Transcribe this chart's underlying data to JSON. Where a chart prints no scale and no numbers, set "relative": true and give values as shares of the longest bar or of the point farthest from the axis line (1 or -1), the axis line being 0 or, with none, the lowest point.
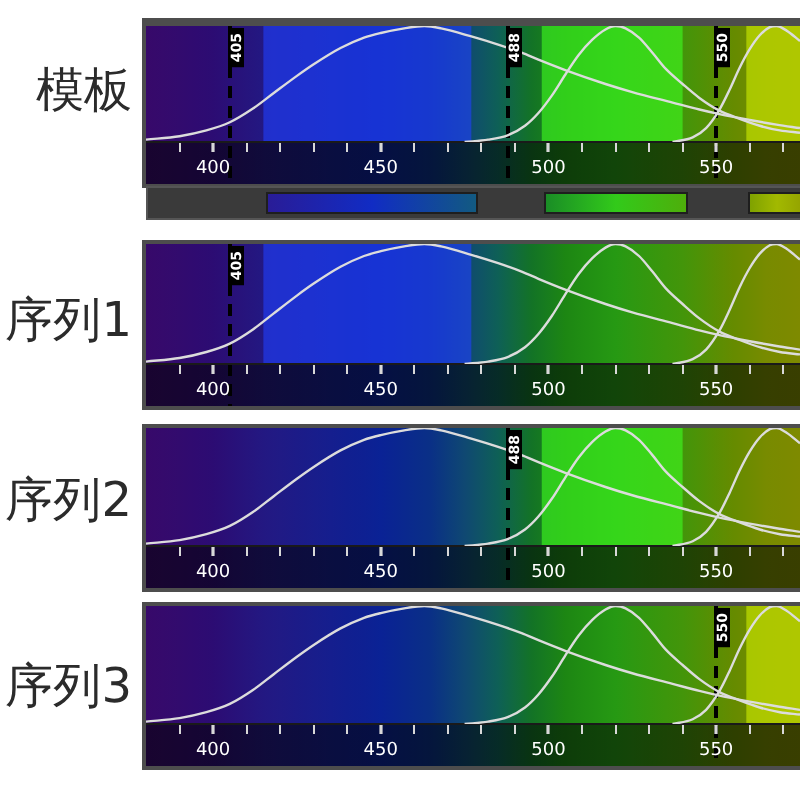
{
  "chart_data": [
    {
      "type": "line",
      "title": "模板",
      "relative": true,
      "xlim": [
        380,
        575
      ],
      "xticks": [
        {
          "value": 390,
          "label": null
        },
        400,
        {
          "value": 410,
          "label": null
        },
        {
          "value": 420,
          "label": null
        },
        {
          "value": 430,
          "label": null
        },
        {
          "value": 440,
          "label": null
        },
        450,
        {
          "value": 460,
          "label": null
        },
        {
          "value": 470,
          "label": null
        },
        {
          "value": 480,
          "label": null
        },
        {
          "value": 490,
          "label": null
        },
        500,
        {
          "value": 510,
          "label": null
        },
        {
          "value": 520,
          "label": null
        },
        {
          "value": 530,
          "label": null
        },
        {
          "value": 540,
          "label": null
        },
        550,
        {
          "value": 560,
          "label": null
        },
        {
          "value": 570,
          "label": null
        }
      ],
      "series": [
        {
          "color": "#dcdcdc",
          "x": [
            380,
            390,
            398,
            405,
            412,
            418,
            425,
            430,
            438,
            445,
            450,
            457,
            463,
            468,
            477,
            485,
            492,
            497,
            505,
            517,
            525,
            537,
            545,
            551,
            560,
            568,
            575
          ],
          "values": [
            0.02,
            0.05,
            0.1,
            0.17,
            0.29,
            0.42,
            0.57,
            0.67,
            0.81,
            0.9,
            0.94,
            0.98,
            1.0,
            0.98,
            0.91,
            0.84,
            0.77,
            0.71,
            0.62,
            0.5,
            0.43,
            0.34,
            0.28,
            0.24,
            0.19,
            0.15,
            0.12
          ]
        },
        {
          "color": "#dcdcdc",
          "x": [
            475,
            482,
            488,
            493,
            497,
            501,
            505,
            509,
            513,
            517,
            520,
            523,
            527,
            531,
            535,
            540,
            545,
            551,
            557,
            563,
            569,
            575
          ],
          "values": [
            0,
            0.02,
            0.06,
            0.14,
            0.25,
            0.4,
            0.58,
            0.75,
            0.88,
            0.97,
            1.0,
            0.98,
            0.9,
            0.77,
            0.63,
            0.5,
            0.38,
            0.27,
            0.2,
            0.14,
            0.1,
            0.08
          ]
        },
        {
          "color": "#dcdcdc",
          "x": [
            537,
            543,
            547,
            551,
            554,
            557,
            560,
            563,
            566,
            568,
            571,
            575
          ],
          "values": [
            0,
            0.04,
            0.12,
            0.28,
            0.45,
            0.64,
            0.8,
            0.92,
            0.99,
            1.0,
            0.96,
            0.87
          ]
        }
      ],
      "ref_lines": [
        {
          "axis": "x",
          "value": 405,
          "label": "405",
          "color": "#000000",
          "line_style": "dashed"
        },
        {
          "axis": "x",
          "value": 488,
          "label": "488",
          "color": "#000000",
          "line_style": "dashed"
        },
        {
          "axis": "x",
          "value": 550,
          "label": "550",
          "color": "#000000",
          "line_style": "dashed"
        }
      ],
      "bands": [
        {
          "axis": "x",
          "from": 415,
          "to": 477,
          "color": "#2040ff"
        },
        {
          "axis": "x",
          "from": 498,
          "to": 540,
          "color": "#40ff20"
        },
        {
          "axis": "x",
          "from": 559,
          "to": 575,
          "color": "#d0f000"
        }
      ]
    },
    {
      "type": "line",
      "title": "序列1",
      "relative": true,
      "xlim": [
        380,
        575
      ],
      "xticks": [
        {
          "value": 390,
          "label": null
        },
        400,
        {
          "value": 410,
          "label": null
        },
        {
          "value": 420,
          "label": null
        },
        {
          "value": 430,
          "label": null
        },
        {
          "value": 440,
          "label": null
        },
        450,
        {
          "value": 460,
          "label": null
        },
        {
          "value": 470,
          "label": null
        },
        {
          "value": 480,
          "label": null
        },
        {
          "value": 490,
          "label": null
        },
        500,
        {
          "value": 510,
          "label": null
        },
        {
          "value": 520,
          "label": null
        },
        {
          "value": 530,
          "label": null
        },
        {
          "value": 540,
          "label": null
        },
        550,
        {
          "value": 560,
          "label": null
        },
        {
          "value": 570,
          "label": null
        }
      ],
      "series": [
        {
          "color": "#dcdcdc",
          "x": [
            380,
            390,
            398,
            405,
            412,
            418,
            425,
            430,
            438,
            445,
            450,
            457,
            463,
            468,
            477,
            485,
            492,
            497,
            505,
            517,
            525,
            537,
            545,
            551,
            560,
            568,
            575
          ],
          "values": [
            0.02,
            0.05,
            0.1,
            0.17,
            0.29,
            0.42,
            0.57,
            0.67,
            0.81,
            0.9,
            0.94,
            0.98,
            1.0,
            0.98,
            0.91,
            0.84,
            0.77,
            0.71,
            0.62,
            0.5,
            0.43,
            0.34,
            0.28,
            0.24,
            0.19,
            0.15,
            0.12
          ]
        },
        {
          "color": "#dcdcdc",
          "x": [
            475,
            482,
            488,
            493,
            497,
            501,
            505,
            509,
            513,
            517,
            520,
            523,
            527,
            531,
            535,
            540,
            545,
            551,
            557,
            563,
            569,
            575
          ],
          "values": [
            0,
            0.02,
            0.06,
            0.14,
            0.25,
            0.4,
            0.58,
            0.75,
            0.88,
            0.97,
            1.0,
            0.98,
            0.9,
            0.77,
            0.63,
            0.5,
            0.38,
            0.27,
            0.2,
            0.14,
            0.1,
            0.08
          ]
        },
        {
          "color": "#dcdcdc",
          "x": [
            537,
            543,
            547,
            551,
            554,
            557,
            560,
            563,
            566,
            568,
            571,
            575
          ],
          "values": [
            0,
            0.04,
            0.12,
            0.28,
            0.45,
            0.64,
            0.8,
            0.92,
            0.99,
            1.0,
            0.96,
            0.87
          ]
        }
      ],
      "ref_lines": [
        {
          "axis": "x",
          "value": 405,
          "label": "405",
          "color": "#000000",
          "line_style": "dashed"
        }
      ],
      "bands": [
        {
          "axis": "x",
          "from": 415,
          "to": 477,
          "color": "#2040ff"
        }
      ]
    },
    {
      "type": "line",
      "title": "序列2",
      "relative": true,
      "xlim": [
        380,
        575
      ],
      "xticks": [
        {
          "value": 390,
          "label": null
        },
        400,
        {
          "value": 410,
          "label": null
        },
        {
          "value": 420,
          "label": null
        },
        {
          "value": 430,
          "label": null
        },
        {
          "value": 440,
          "label": null
        },
        450,
        {
          "value": 460,
          "label": null
        },
        {
          "value": 470,
          "label": null
        },
        {
          "value": 480,
          "label": null
        },
        {
          "value": 490,
          "label": null
        },
        500,
        {
          "value": 510,
          "label": null
        },
        {
          "value": 520,
          "label": null
        },
        {
          "value": 530,
          "label": null
        },
        {
          "value": 540,
          "label": null
        },
        550,
        {
          "value": 560,
          "label": null
        },
        {
          "value": 570,
          "label": null
        }
      ],
      "series": [
        {
          "color": "#dcdcdc",
          "x": [
            380,
            390,
            398,
            405,
            412,
            418,
            425,
            430,
            438,
            445,
            450,
            457,
            463,
            468,
            477,
            485,
            492,
            497,
            505,
            517,
            525,
            537,
            545,
            551,
            560,
            568,
            575
          ],
          "values": [
            0.02,
            0.05,
            0.1,
            0.17,
            0.29,
            0.42,
            0.57,
            0.67,
            0.81,
            0.9,
            0.94,
            0.98,
            1.0,
            0.98,
            0.91,
            0.84,
            0.77,
            0.71,
            0.62,
            0.5,
            0.43,
            0.34,
            0.28,
            0.24,
            0.19,
            0.15,
            0.12
          ]
        },
        {
          "color": "#dcdcdc",
          "x": [
            475,
            482,
            488,
            493,
            497,
            501,
            505,
            509,
            513,
            517,
            520,
            523,
            527,
            531,
            535,
            540,
            545,
            551,
            557,
            563,
            569,
            575
          ],
          "values": [
            0,
            0.02,
            0.06,
            0.14,
            0.25,
            0.4,
            0.58,
            0.75,
            0.88,
            0.97,
            1.0,
            0.98,
            0.9,
            0.77,
            0.63,
            0.5,
            0.38,
            0.27,
            0.2,
            0.14,
            0.1,
            0.08
          ]
        },
        {
          "color": "#dcdcdc",
          "x": [
            537,
            543,
            547,
            551,
            554,
            557,
            560,
            563,
            566,
            568,
            571,
            575
          ],
          "values": [
            0,
            0.04,
            0.12,
            0.28,
            0.45,
            0.64,
            0.8,
            0.92,
            0.99,
            1.0,
            0.96,
            0.87
          ]
        }
      ],
      "ref_lines": [
        {
          "axis": "x",
          "value": 488,
          "label": "488",
          "color": "#000000",
          "line_style": "dashed"
        }
      ],
      "bands": [
        {
          "axis": "x",
          "from": 498,
          "to": 540,
          "color": "#40ff20"
        }
      ]
    },
    {
      "type": "line",
      "title": "序列3",
      "relative": true,
      "xlim": [
        380,
        575
      ],
      "xticks": [
        {
          "value": 390,
          "label": null
        },
        400,
        {
          "value": 410,
          "label": null
        },
        {
          "value": 420,
          "label": null
        },
        {
          "value": 430,
          "label": null
        },
        {
          "value": 440,
          "label": null
        },
        450,
        {
          "value": 460,
          "label": null
        },
        {
          "value": 470,
          "label": null
        },
        {
          "value": 480,
          "label": null
        },
        {
          "value": 490,
          "label": null
        },
        500,
        {
          "value": 510,
          "label": null
        },
        {
          "value": 520,
          "label": null
        },
        {
          "value": 530,
          "label": null
        },
        {
          "value": 540,
          "label": null
        },
        550,
        {
          "value": 560,
          "label": null
        },
        {
          "value": 570,
          "label": null
        }
      ],
      "series": [
        {
          "color": "#dcdcdc",
          "x": [
            380,
            390,
            398,
            405,
            412,
            418,
            425,
            430,
            438,
            445,
            450,
            457,
            463,
            468,
            477,
            485,
            492,
            497,
            505,
            517,
            525,
            537,
            545,
            551,
            560,
            568,
            575
          ],
          "values": [
            0.02,
            0.05,
            0.1,
            0.17,
            0.29,
            0.42,
            0.57,
            0.67,
            0.81,
            0.9,
            0.94,
            0.98,
            1.0,
            0.98,
            0.91,
            0.84,
            0.77,
            0.71,
            0.62,
            0.5,
            0.43,
            0.34,
            0.28,
            0.24,
            0.19,
            0.15,
            0.12
          ]
        },
        {
          "color": "#dcdcdc",
          "x": [
            475,
            482,
            488,
            493,
            497,
            501,
            505,
            509,
            513,
            517,
            520,
            523,
            527,
            531,
            535,
            540,
            545,
            551,
            557,
            563,
            569,
            575
          ],
          "values": [
            0,
            0.02,
            0.06,
            0.14,
            0.25,
            0.4,
            0.58,
            0.75,
            0.88,
            0.97,
            1.0,
            0.98,
            0.9,
            0.77,
            0.63,
            0.5,
            0.38,
            0.27,
            0.2,
            0.14,
            0.1,
            0.08
          ]
        },
        {
          "color": "#dcdcdc",
          "x": [
            537,
            543,
            547,
            551,
            554,
            557,
            560,
            563,
            566,
            568,
            571,
            575
          ],
          "values": [
            0,
            0.04,
            0.12,
            0.28,
            0.45,
            0.64,
            0.8,
            0.92,
            0.99,
            1.0,
            0.96,
            0.87
          ]
        }
      ],
      "ref_lines": [
        {
          "axis": "x",
          "value": 550,
          "label": "550",
          "color": "#000000",
          "line_style": "dashed"
        }
      ],
      "bands": [
        {
          "axis": "x",
          "from": 559,
          "to": 575,
          "color": "#d0f000"
        }
      ]
    }
  ]
}
